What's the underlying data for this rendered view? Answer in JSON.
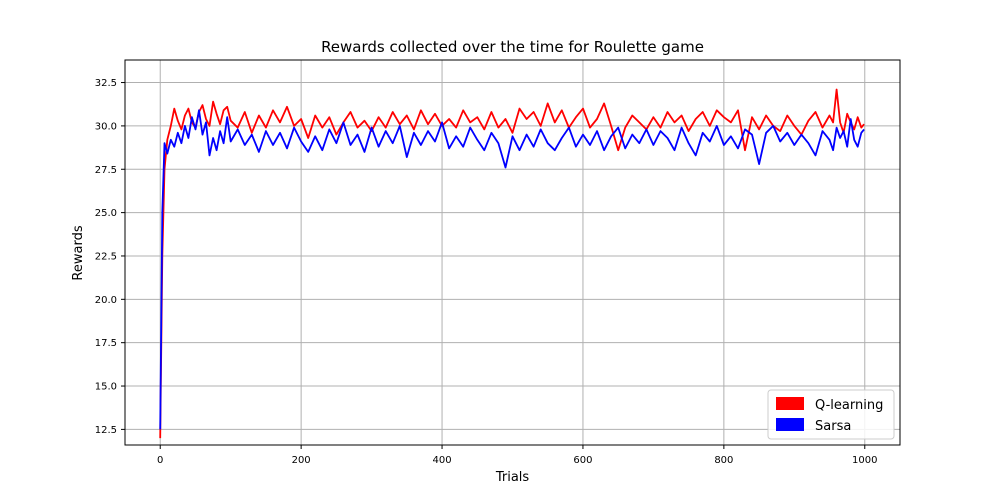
{
  "chart_data": {
    "type": "line",
    "title": "Rewards collected over the time for Roulette game",
    "xlabel": "Trials",
    "ylabel": "Rewards",
    "xlim": [
      -50,
      1050
    ],
    "ylim": [
      11.6,
      33.8
    ],
    "xticks": [
      0,
      200,
      400,
      600,
      800,
      1000
    ],
    "xtick_labels": [
      "0",
      "200",
      "400",
      "600",
      "800",
      "1000"
    ],
    "yticks": [
      12.5,
      15.0,
      17.5,
      20.0,
      22.5,
      25.0,
      27.5,
      30.0,
      32.5
    ],
    "ytick_labels": [
      "12.5",
      "15.0",
      "17.5",
      "20.0",
      "22.5",
      "25.0",
      "27.5",
      "30.0",
      "32.5"
    ],
    "grid": true,
    "legend_position": "bottom-right",
    "series": [
      {
        "name": "Q-learning",
        "color": "#ff0000",
        "x": [
          0,
          3,
          6,
          10,
          15,
          20,
          25,
          30,
          35,
          40,
          45,
          50,
          55,
          60,
          65,
          70,
          75,
          80,
          85,
          90,
          95,
          100,
          110,
          120,
          130,
          140,
          150,
          160,
          170,
          180,
          190,
          200,
          210,
          220,
          230,
          240,
          250,
          260,
          270,
          280,
          290,
          300,
          310,
          320,
          330,
          340,
          350,
          360,
          370,
          380,
          390,
          400,
          410,
          420,
          430,
          440,
          450,
          460,
          470,
          480,
          490,
          500,
          510,
          520,
          530,
          540,
          550,
          560,
          570,
          580,
          590,
          600,
          610,
          620,
          630,
          640,
          650,
          660,
          670,
          680,
          690,
          700,
          710,
          720,
          730,
          740,
          750,
          760,
          770,
          780,
          790,
          800,
          810,
          820,
          830,
          840,
          850,
          860,
          870,
          880,
          890,
          900,
          910,
          920,
          930,
          940,
          950,
          955,
          960,
          965,
          970,
          975,
          980,
          985,
          990,
          995,
          999
        ],
        "y": [
          12.0,
          22.5,
          27.5,
          29.2,
          30.0,
          31.0,
          30.3,
          29.8,
          30.6,
          31.0,
          30.2,
          29.9,
          30.8,
          31.2,
          30.4,
          30.0,
          31.4,
          30.7,
          30.1,
          30.9,
          31.1,
          30.3,
          29.9,
          30.8,
          29.6,
          30.6,
          29.9,
          30.9,
          30.2,
          31.1,
          30.0,
          30.4,
          29.3,
          30.6,
          29.9,
          30.5,
          29.5,
          30.2,
          30.8,
          29.9,
          30.3,
          29.7,
          30.5,
          29.9,
          30.8,
          30.1,
          30.6,
          29.8,
          30.9,
          30.1,
          30.7,
          30.0,
          30.4,
          29.9,
          30.9,
          30.2,
          30.5,
          29.8,
          30.8,
          29.9,
          30.4,
          29.6,
          31.0,
          30.4,
          30.8,
          30.0,
          31.3,
          30.2,
          30.9,
          29.9,
          30.5,
          31.0,
          29.9,
          30.4,
          31.3,
          30.0,
          28.6,
          29.9,
          30.6,
          30.2,
          29.8,
          30.5,
          29.9,
          30.8,
          30.2,
          30.6,
          29.7,
          30.4,
          30.8,
          30.0,
          30.9,
          30.5,
          30.2,
          30.9,
          28.6,
          30.5,
          29.8,
          30.6,
          30.0,
          29.7,
          30.6,
          30.0,
          29.5,
          30.3,
          30.8,
          29.9,
          30.6,
          30.2,
          32.1,
          30.2,
          29.6,
          30.7,
          30.2,
          29.8,
          30.5,
          29.9,
          30.1
        ]
      },
      {
        "name": "Sarsa",
        "color": "#0000ff",
        "x": [
          0,
          3,
          6,
          10,
          15,
          20,
          25,
          30,
          35,
          40,
          45,
          50,
          55,
          60,
          65,
          70,
          75,
          80,
          85,
          90,
          95,
          100,
          110,
          120,
          130,
          140,
          150,
          160,
          170,
          180,
          190,
          200,
          210,
          220,
          230,
          240,
          250,
          260,
          270,
          280,
          290,
          300,
          310,
          320,
          330,
          340,
          350,
          360,
          370,
          380,
          390,
          400,
          410,
          420,
          430,
          440,
          450,
          460,
          470,
          480,
          490,
          500,
          510,
          520,
          530,
          540,
          550,
          560,
          570,
          580,
          590,
          600,
          610,
          620,
          630,
          640,
          650,
          660,
          670,
          680,
          690,
          700,
          710,
          720,
          730,
          740,
          750,
          760,
          770,
          780,
          790,
          800,
          810,
          820,
          830,
          840,
          850,
          860,
          870,
          880,
          890,
          900,
          910,
          920,
          930,
          940,
          950,
          955,
          960,
          965,
          970,
          975,
          980,
          985,
          990,
          995,
          999
        ],
        "y": [
          12.5,
          25.0,
          29.0,
          28.4,
          29.2,
          28.8,
          29.6,
          29.0,
          30.0,
          29.3,
          30.5,
          29.8,
          30.9,
          29.5,
          30.2,
          28.3,
          29.3,
          28.6,
          29.7,
          29.0,
          30.5,
          29.1,
          29.8,
          28.9,
          29.5,
          28.5,
          29.7,
          28.9,
          29.6,
          28.7,
          29.9,
          29.1,
          28.5,
          29.4,
          28.6,
          29.8,
          29.0,
          30.2,
          28.9,
          29.5,
          28.5,
          29.9,
          28.8,
          29.7,
          29.0,
          30.0,
          28.2,
          29.6,
          28.9,
          29.7,
          29.1,
          30.2,
          28.7,
          29.4,
          28.8,
          29.9,
          29.2,
          28.6,
          29.6,
          29.0,
          27.6,
          29.4,
          28.6,
          29.5,
          28.8,
          29.8,
          29.0,
          28.6,
          29.3,
          29.9,
          28.8,
          29.5,
          28.9,
          29.7,
          28.6,
          29.4,
          29.9,
          28.7,
          29.5,
          29.0,
          29.8,
          28.9,
          29.7,
          29.3,
          28.6,
          29.9,
          29.0,
          28.3,
          29.6,
          29.1,
          30.0,
          28.9,
          29.4,
          28.7,
          29.8,
          29.5,
          27.8,
          29.6,
          30.0,
          29.1,
          29.6,
          28.9,
          29.5,
          29.0,
          28.3,
          29.7,
          29.2,
          28.6,
          29.9,
          29.3,
          29.7,
          28.8,
          30.4,
          29.2,
          28.8,
          29.6,
          29.8
        ]
      }
    ]
  }
}
